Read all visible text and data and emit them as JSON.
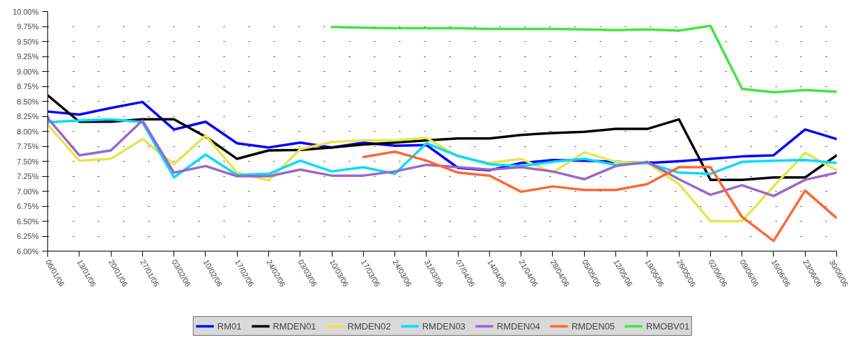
{
  "chart_data": {
    "type": "line",
    "categories": [
      "06/01/06",
      "13/01/06",
      "20/01/06",
      "27/01/06",
      "03/02/06",
      "10/02/06",
      "17/02/06",
      "24/02/06",
      "03/03/06",
      "10/03/06",
      "17/03/06",
      "24/03/06",
      "31/03/06",
      "07/04/06",
      "14/04/06",
      "21/04/06",
      "28/04/06",
      "05/05/06",
      "12/05/06",
      "19/05/06",
      "26/05/06",
      "02/06/06",
      "09/06/06",
      "16/06/06",
      "23/06/06",
      "30/06/06"
    ],
    "ylim": [
      6,
      10
    ],
    "yticks": [
      {
        "value": 6,
        "label": "6.00%"
      },
      {
        "value": 6.25,
        "label": "6.25%"
      },
      {
        "value": 6.5,
        "label": "6.50%"
      },
      {
        "value": 6.75,
        "label": "6.75%"
      },
      {
        "value": 7,
        "label": "7.00%"
      },
      {
        "value": 7.25,
        "label": "7.25%"
      },
      {
        "value": 7.5,
        "label": "7.50%"
      },
      {
        "value": 7.75,
        "label": "7.75%"
      },
      {
        "value": 8,
        "label": "8.00%"
      },
      {
        "value": 8.25,
        "label": "8.25%"
      },
      {
        "value": 8.5,
        "label": "8.50%"
      },
      {
        "value": 8.75,
        "label": "8.75%"
      },
      {
        "value": 9,
        "label": "9.00%"
      },
      {
        "value": 9.25,
        "label": "9.25%"
      },
      {
        "value": 9.5,
        "label": "9.50%"
      },
      {
        "value": 9.75,
        "label": "9.75%"
      },
      {
        "value": 10,
        "label": "10.00%"
      }
    ],
    "grid": "y",
    "legend": "bottom",
    "marker": "none",
    "line_style": "solid",
    "series": [
      {
        "name": "RM01",
        "color": "#0000ff",
        "values": [
          8.33,
          8.28,
          8.39,
          8.49,
          8.03,
          8.16,
          7.8,
          7.73,
          7.81,
          7.73,
          7.81,
          7.76,
          7.77,
          7.39,
          7.35,
          7.47,
          7.52,
          7.51,
          7.49,
          7.47,
          7.5,
          7.54,
          7.58,
          7.6,
          8.03,
          7.87
        ]
      },
      {
        "name": "RMDEN01",
        "color": "#000000",
        "values": [
          8.6,
          8.16,
          8.16,
          8.2,
          8.2,
          7.91,
          7.54,
          7.68,
          7.69,
          7.73,
          7.78,
          7.81,
          7.85,
          7.88,
          7.88,
          7.94,
          7.97,
          7.99,
          8.04,
          8.04,
          8.2,
          7.19,
          7.19,
          7.23,
          7.23,
          7.6
        ]
      },
      {
        "name": "RMDEN02",
        "color": "#e5e54c",
        "values": [
          8.11,
          7.51,
          7.54,
          7.87,
          7.45,
          7.93,
          7.31,
          7.18,
          7.7,
          7.82,
          7.85,
          7.85,
          7.89,
          7.58,
          7.47,
          7.54,
          7.31,
          7.65,
          7.49,
          7.47,
          7.12,
          6.5,
          6.5,
          7.08,
          7.64,
          7.35
        ]
      },
      {
        "name": "RMDEN03",
        "color": "#00dcff",
        "values": [
          8.15,
          8.18,
          8.2,
          8.15,
          7.23,
          7.61,
          7.27,
          7.29,
          7.51,
          7.33,
          7.4,
          7.29,
          7.8,
          7.59,
          7.45,
          7.42,
          7.49,
          7.54,
          7.44,
          7.47,
          7.31,
          7.29,
          7.49,
          7.51,
          7.52,
          7.47
        ]
      },
      {
        "name": "RMDEN04",
        "color": "#9966cc",
        "values": [
          8.22,
          7.6,
          7.68,
          8.18,
          7.31,
          7.42,
          7.25,
          7.25,
          7.36,
          7.26,
          7.26,
          7.33,
          7.44,
          7.4,
          7.36,
          7.4,
          7.33,
          7.2,
          7.42,
          7.49,
          7.2,
          6.94,
          7.1,
          6.92,
          7.19,
          7.31
        ]
      },
      {
        "name": "RMDEN05",
        "color": "#ff6633",
        "values": [
          null,
          null,
          null,
          null,
          null,
          null,
          null,
          null,
          null,
          null,
          7.57,
          7.66,
          7.51,
          7.31,
          7.26,
          6.99,
          7.08,
          7.02,
          7.02,
          7.12,
          7.4,
          7.4,
          6.57,
          6.17,
          7.01,
          6.55
        ]
      },
      {
        "name": "RMOBV01",
        "color": "#40e640",
        "values": [
          null,
          null,
          null,
          null,
          null,
          null,
          null,
          null,
          null,
          9.74,
          9.73,
          9.72,
          9.72,
          9.72,
          9.71,
          9.71,
          9.71,
          9.7,
          9.69,
          9.7,
          9.68,
          9.76,
          8.71,
          8.65,
          8.69,
          8.66
        ]
      }
    ]
  }
}
